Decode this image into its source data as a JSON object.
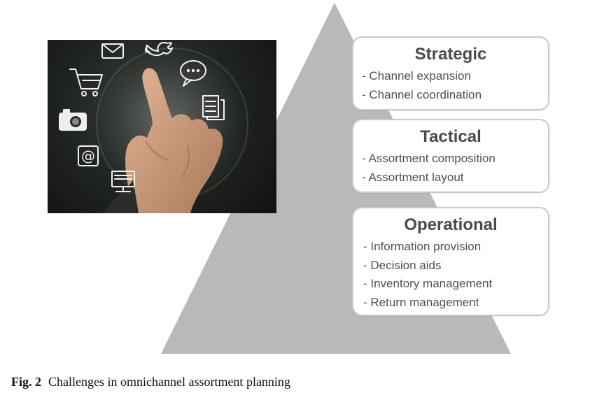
{
  "colors": {
    "pyramid": "#b9b9b9",
    "box_border": "#c8c8c8",
    "box_text": "#4d4d4d",
    "photo_background": "#1f2320",
    "icon_stroke": "#f2f2f2"
  },
  "photo": {
    "icons": [
      "mail-icon",
      "twitter-bird-icon",
      "shopping-cart-icon",
      "chat-bubble-icon",
      "camera-icon",
      "document-icon",
      "at-sign-icon",
      "monitor-icon"
    ]
  },
  "levels": {
    "strategic": {
      "title": "Strategic",
      "items": [
        "- Channel expansion",
        "- Channel coordination"
      ]
    },
    "tactical": {
      "title": "Tactical",
      "items": [
        "- Assortment composition",
        "- Assortment layout"
      ]
    },
    "operational": {
      "title": "Operational",
      "items": [
        "- Information provision",
        "- Decision aids",
        "- Inventory management",
        "- Return management"
      ]
    }
  },
  "caption": {
    "label": "Fig. 2",
    "text": "Challenges in omnichannel assortment planning"
  }
}
